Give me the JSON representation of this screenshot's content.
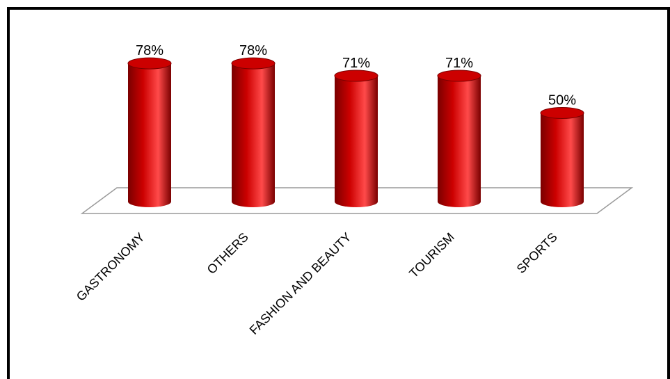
{
  "chart_data": {
    "type": "bar",
    "style": "3d-cylinder",
    "categories": [
      "GASTRONOMY",
      "OTHERS",
      "FASHION AND BEAUTY",
      "TOURISM",
      "SPORTS"
    ],
    "values": [
      78,
      78,
      71,
      71,
      50
    ],
    "data_labels": [
      "78%",
      "78%",
      "71%",
      "71%",
      "50%"
    ],
    "unit": "%",
    "ylim": [
      0,
      100
    ],
    "grid": false,
    "legend": "none",
    "colors": {
      "bar": "#cc0000",
      "bar_dark": "#7a0000",
      "bar_light": "#ff4a4a",
      "floor": "#9a9a9a"
    }
  }
}
